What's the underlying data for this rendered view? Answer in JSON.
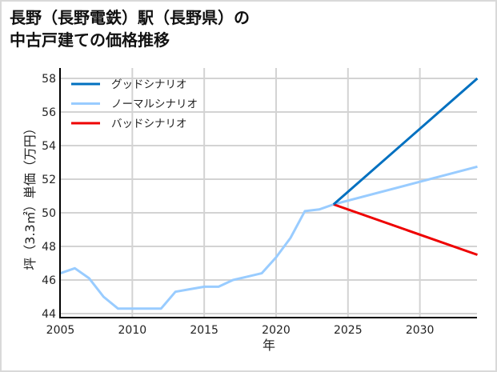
{
  "title": {
    "line1": "長野（長野電鉄）駅（長野県）の",
    "line2": "中古戸建ての価格推移"
  },
  "chart_data": {
    "type": "line",
    "title": "長野（長野電鉄）駅（長野県）の中古戸建ての価格推移",
    "xlabel": "年",
    "ylabel": "坪（3.3㎡）単価（万円）",
    "xlim": [
      2005,
      2034
    ],
    "ylim": [
      43.8,
      58.6
    ],
    "xticks": [
      2005,
      2010,
      2015,
      2020,
      2025,
      2030
    ],
    "yticks": [
      44,
      46,
      48,
      50,
      52,
      54,
      56,
      58
    ],
    "grid": true,
    "legend_position": "upper left",
    "series": [
      {
        "name": "グッドシナリオ",
        "color": "#0070c0",
        "x": [
          2024,
          2034
        ],
        "values": [
          50.5,
          58.0
        ]
      },
      {
        "name": "ノーマルシナリオ",
        "color": "#99ccff",
        "x": [
          2005,
          2006,
          2007,
          2008,
          2009,
          2010,
          2011,
          2012,
          2013,
          2014,
          2015,
          2016,
          2017,
          2018,
          2019,
          2020,
          2021,
          2022,
          2023,
          2024,
          2034
        ],
        "values": [
          46.4,
          46.7,
          46.1,
          45.0,
          44.3,
          44.3,
          44.3,
          44.3,
          45.3,
          45.45,
          45.6,
          45.6,
          46.0,
          46.2,
          46.4,
          47.35,
          48.5,
          50.1,
          50.2,
          50.5,
          52.75
        ]
      },
      {
        "name": "バッドシナリオ",
        "color": "#ee0000",
        "x": [
          2024,
          2034
        ],
        "values": [
          50.5,
          47.5
        ]
      }
    ]
  }
}
